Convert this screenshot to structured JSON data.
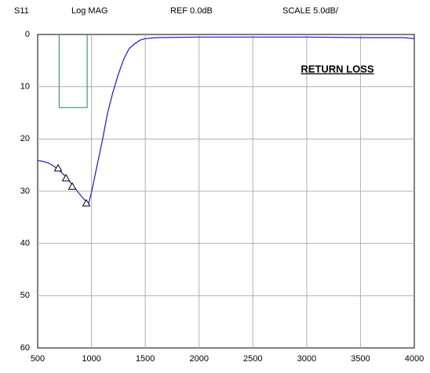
{
  "chart_data": {
    "type": "line",
    "header": [
      "S11",
      "Log MAG",
      "REF 0.0dB",
      "SCALE 5.0dB/"
    ],
    "annotation": "RETURN LOSS",
    "xlim": [
      500,
      4000
    ],
    "xticks": [
      500,
      1000,
      1500,
      2000,
      2500,
      3000,
      3500,
      4000
    ],
    "ylim": [
      60,
      0
    ],
    "yticks": [
      0,
      10,
      20,
      30,
      40,
      50,
      60
    ],
    "grid": true,
    "mask": {
      "x": [
        700,
        960
      ],
      "y": [
        0,
        14
      ],
      "color": "#2e9e7e"
    },
    "series": [
      {
        "color": "#1a1acc",
        "marker": "none",
        "x": [
          500,
          550,
          600,
          650,
          700,
          750,
          800,
          850,
          900,
          950,
          975,
          1000,
          1050,
          1100,
          1150,
          1200,
          1250,
          1300,
          1350,
          1400,
          1450,
          1500,
          1600,
          2000,
          3000,
          3500,
          3900,
          4000
        ],
        "values": [
          24.1,
          24.3,
          24.6,
          25.2,
          26.0,
          27.0,
          28.2,
          29.5,
          30.8,
          32.0,
          32.3,
          30.2,
          25.3,
          20.4,
          15.0,
          11.0,
          7.6,
          4.7,
          2.7,
          1.8,
          1.1,
          0.8,
          0.6,
          0.5,
          0.5,
          0.6,
          0.6,
          0.8
        ]
      },
      {
        "color": "#000000",
        "marker": "triangle",
        "x": [
          690,
          763,
          821,
          952
        ],
        "values": [
          25.6,
          27.5,
          29.1,
          32.3
        ]
      }
    ]
  }
}
